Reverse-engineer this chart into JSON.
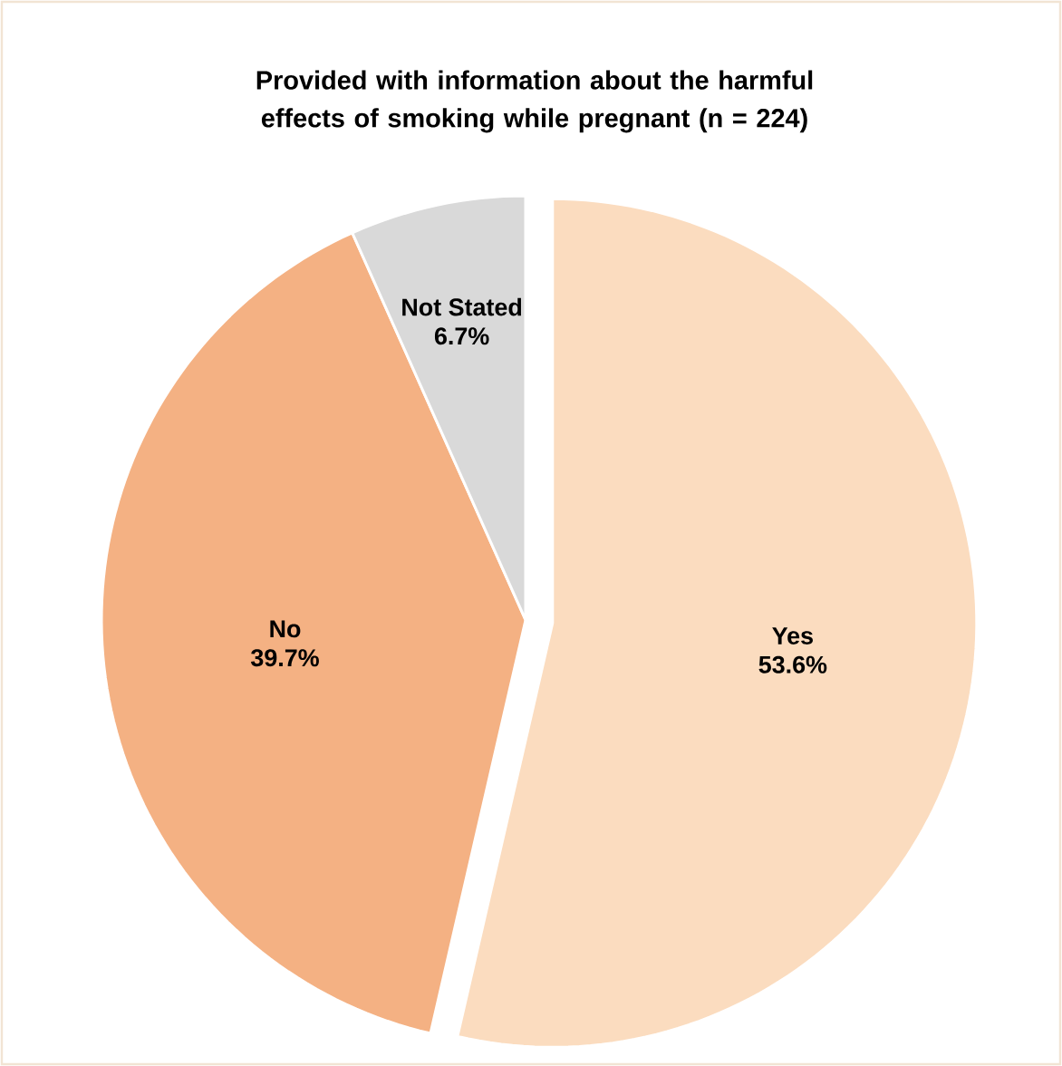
{
  "chart_data": {
    "type": "pie",
    "title": "Provided with information about the harmful effects of smoking while pregnant (n = 224)",
    "categories": [
      "Yes",
      "No",
      "Not Stated"
    ],
    "values": [
      53.6,
      39.7,
      6.7
    ],
    "colors": [
      "#fbdcbf",
      "#f4b183",
      "#d9d9d9"
    ],
    "value_labels": [
      "53.6%",
      "39.7%",
      "6.7%"
    ]
  }
}
